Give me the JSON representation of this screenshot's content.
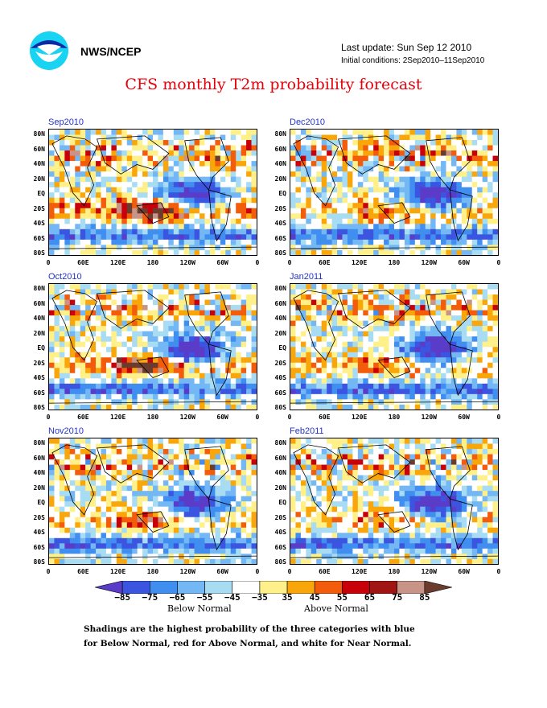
{
  "header": {
    "org": "NWS/NCEP",
    "last_update": "Last update: Sun Sep 12 2010",
    "initial_conditions": "Initial conditions: 2Sep2010–11Sep2010"
  },
  "title": "CFS monthly T2m probability forecast",
  "panels": [
    {
      "label": "Sep2010",
      "warm": 0.9
    },
    {
      "label": "Dec2010",
      "warm": 0.5
    },
    {
      "label": "Oct2010",
      "warm": 0.8
    },
    {
      "label": "Jan2011",
      "warm": 0.45
    },
    {
      "label": "Nov2010",
      "warm": 0.55
    },
    {
      "label": "Feb2011",
      "warm": 0.45
    }
  ],
  "axes": {
    "lat_ticks": [
      "80N",
      "60N",
      "40N",
      "20N",
      "EQ",
      "20S",
      "40S",
      "60S",
      "80S"
    ],
    "lon_ticks": [
      "0",
      "60E",
      "120E",
      "180",
      "120W",
      "60W",
      "0"
    ]
  },
  "colorbar": {
    "labels": [
      "−85",
      "−75",
      "−65",
      "−55",
      "−45",
      "−35",
      "35",
      "45",
      "55",
      "65",
      "75",
      "85"
    ],
    "colors": [
      "#5a3cc8",
      "#3b55e0",
      "#3f8ef0",
      "#74b7f5",
      "#a8dcf2",
      "#ffffff",
      "#fff08a",
      "#f9a60a",
      "#f25c0a",
      "#c8000a",
      "#a01414",
      "#c89488",
      "#6b3c2e"
    ],
    "below_label": "Below Normal",
    "above_label": "Above Normal"
  },
  "footnote": {
    "line1": "Shadings are the highest probability of the three categories with blue",
    "line2": "for Below Normal, red for Above Normal, and white for Near Normal."
  }
}
